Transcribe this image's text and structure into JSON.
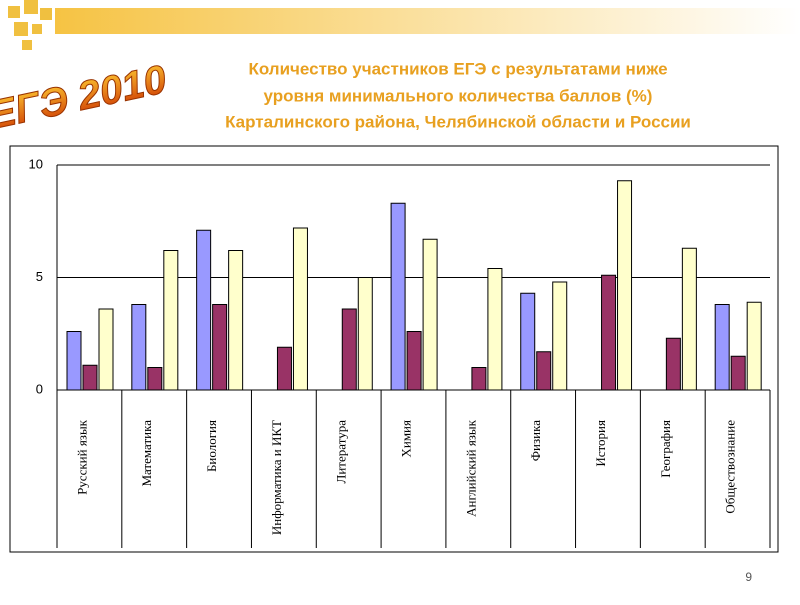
{
  "header": {
    "logo": "ЕГЭ 2010",
    "title": [
      "Количество участников ЕГЭ с результатами ниже",
      "уровня минимального количества баллов (%)",
      "Карталинского района, Челябинской области и России"
    ]
  },
  "page_number": "9",
  "chart_data": {
    "type": "bar",
    "categories": [
      "Русский язык",
      "Математика",
      "Биология",
      "Информатика и ИКТ",
      "Литература",
      "Химия",
      "Английский язык",
      "Физика",
      "История",
      "География",
      "Обществознание"
    ],
    "series": [
      {
        "color": "#9999ff",
        "values": [
          2.6,
          3.8,
          7.1,
          null,
          null,
          8.3,
          null,
          4.3,
          null,
          null,
          3.8
        ]
      },
      {
        "color": "#993366",
        "values": [
          1.1,
          1.0,
          3.8,
          1.9,
          3.6,
          2.6,
          1.0,
          1.7,
          5.1,
          2.3,
          1.5
        ]
      },
      {
        "color": "#ffffcc",
        "values": [
          3.6,
          6.2,
          6.2,
          7.2,
          5.0,
          6.7,
          5.4,
          4.8,
          9.3,
          6.3,
          3.9
        ]
      }
    ],
    "ylim": [
      0,
      10
    ],
    "yticks": [
      0,
      5,
      10
    ],
    "grid": true
  }
}
